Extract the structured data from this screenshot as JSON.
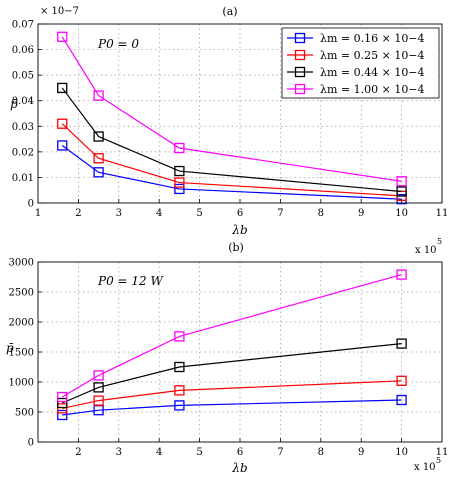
{
  "chart_data": [
    {
      "type": "line",
      "panel_label": "(a)",
      "annotation": "P0 = 0",
      "xlabel": "λb",
      "ylabel": "p̄",
      "y_multiplier": "× 10−7",
      "x_multiplier": "x 10",
      "x_multiplier_exponent": "5",
      "xlim": [
        1,
        11
      ],
      "ylim": [
        0,
        0.07
      ],
      "x_ticks": [
        1,
        2,
        3,
        4,
        5,
        6,
        7,
        8,
        9,
        10,
        11
      ],
      "y_ticks": [
        0,
        0.01,
        0.02,
        0.03,
        0.04,
        0.05,
        0.06,
        0.07
      ],
      "y_tick_labels": [
        "0",
        "0.01",
        "0.02",
        "0.03",
        "0.04",
        "0.05",
        "0.06",
        "0.07"
      ],
      "grid": true,
      "legend_position": "top-right",
      "x": [
        1.6,
        2.5,
        4.5,
        10
      ],
      "series": [
        {
          "name": "λm = 0.16 × 10−4",
          "color": "#0000ff",
          "values": [
            0.0225,
            0.012,
            0.0055,
            0.0015
          ]
        },
        {
          "name": "λm = 0.25 × 10−4",
          "color": "#ff0000",
          "values": [
            0.031,
            0.0175,
            0.008,
            0.0028
          ]
        },
        {
          "name": "λm = 0.44 × 10−4",
          "color": "#000000",
          "values": [
            0.045,
            0.026,
            0.0125,
            0.0045
          ]
        },
        {
          "name": "λm = 1.00 × 10−4",
          "color": "#ff00ff",
          "values": [
            0.065,
            0.042,
            0.0215,
            0.0085
          ]
        }
      ]
    },
    {
      "type": "line",
      "panel_label": "(b)",
      "annotation": "P0 = 12 W",
      "xlabel": "λb",
      "ylabel": "p̄",
      "x_multiplier": "x 10",
      "x_multiplier_exponent": "5",
      "xlim": [
        1,
        11
      ],
      "ylim": [
        0,
        3000
      ],
      "x_ticks": [
        2,
        3,
        4,
        5,
        6,
        7,
        8,
        9,
        10,
        11
      ],
      "y_ticks": [
        0,
        500,
        1000,
        1500,
        2000,
        2500,
        3000
      ],
      "y_tick_labels": [
        "0",
        "500",
        "1000",
        "1500",
        "2000",
        "2500",
        "3000"
      ],
      "grid": true,
      "x": [
        1.6,
        2.5,
        4.5,
        10
      ],
      "series": [
        {
          "color": "#0000ff",
          "values": [
            450,
            530,
            610,
            700
          ]
        },
        {
          "color": "#ff0000",
          "values": [
            560,
            690,
            860,
            1020
          ]
        },
        {
          "color": "#000000",
          "values": [
            650,
            910,
            1250,
            1640
          ]
        },
        {
          "color": "#ff00ff",
          "values": [
            750,
            1110,
            1760,
            2790
          ]
        }
      ]
    }
  ]
}
